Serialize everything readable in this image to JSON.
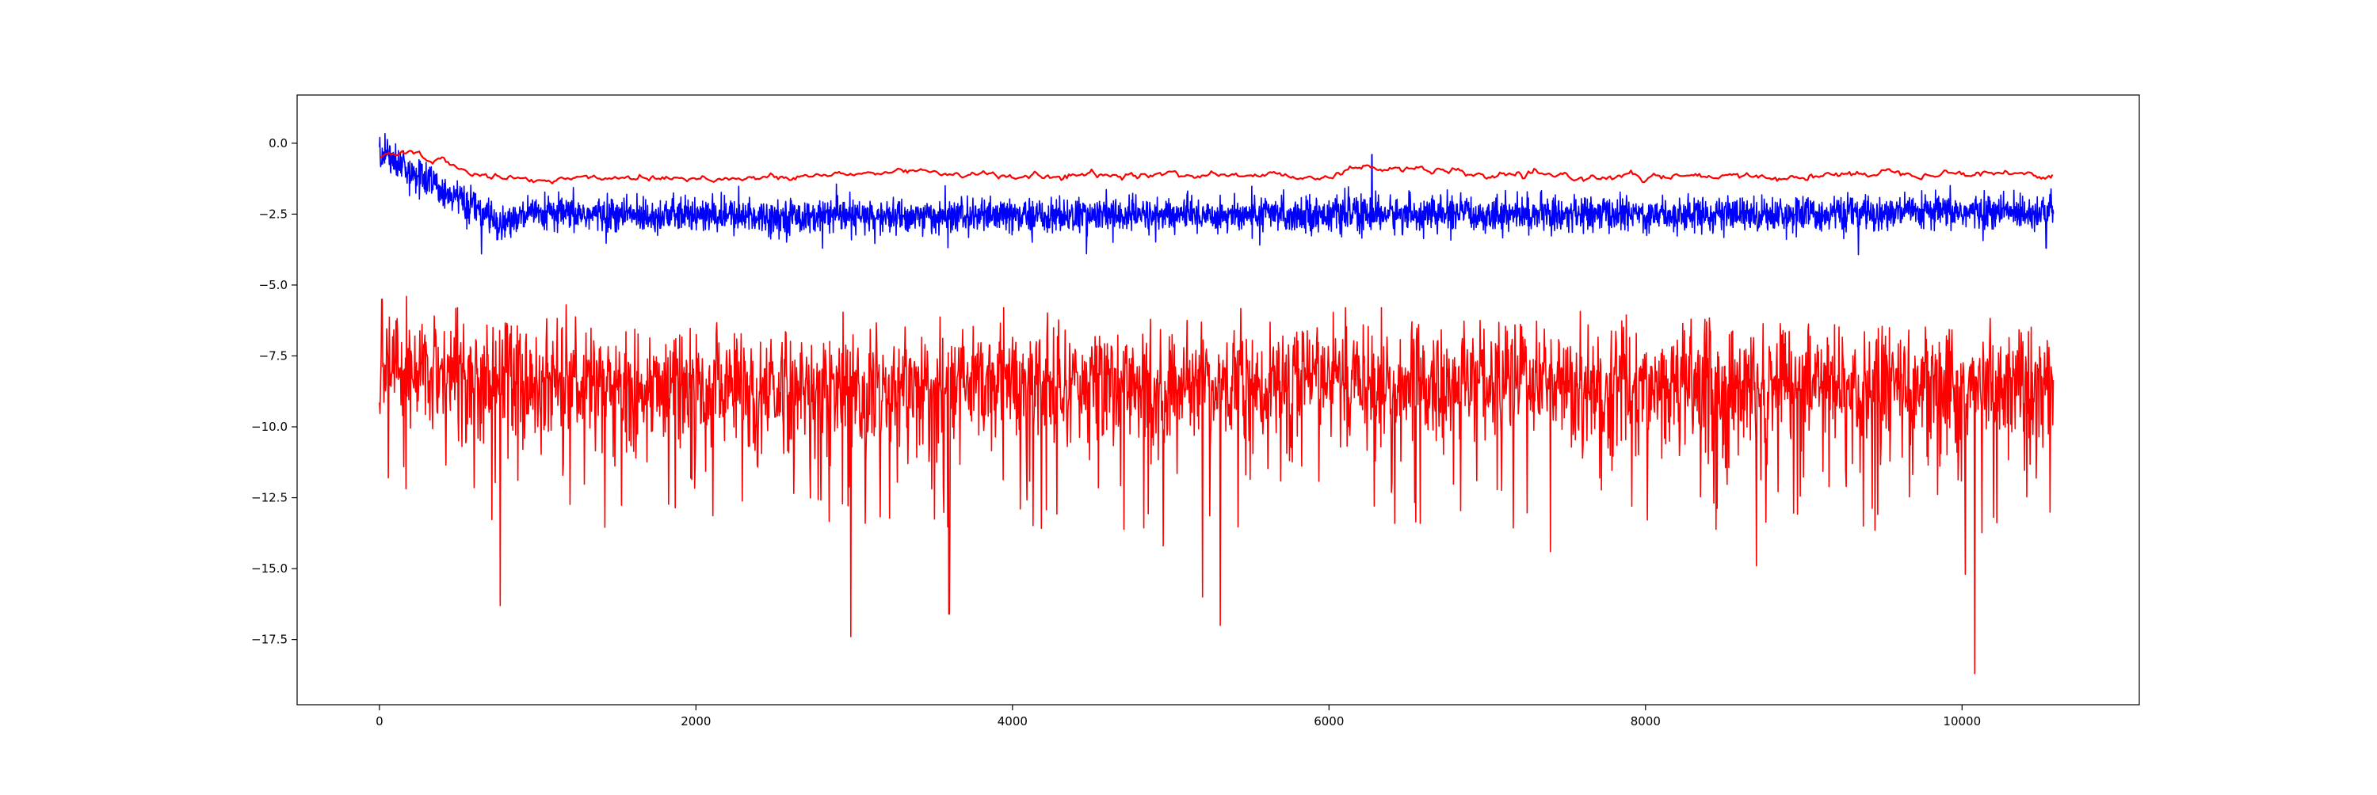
{
  "chart_data": {
    "type": "line",
    "title": "",
    "xlabel": "",
    "ylabel": "",
    "xlim": [
      -520,
      11120
    ],
    "ylim": [
      -19.8,
      1.7
    ],
    "x_ticks": [
      0,
      2000,
      4000,
      6000,
      8000,
      10000
    ],
    "x_tick_labels": [
      "0",
      "2000",
      "4000",
      "6000",
      "8000",
      "10000"
    ],
    "y_ticks": [
      0.0,
      -2.5,
      -5.0,
      -7.5,
      -10.0,
      -12.5,
      -15.0,
      -17.5
    ],
    "y_tick_labels": [
      "0.0",
      "−2.5",
      "−5.0",
      "−7.5",
      "−10.0",
      "−12.5",
      "−15.0",
      "−17.5"
    ],
    "grid": false,
    "legend": "none",
    "series": [
      {
        "color": "#ff0000",
        "role": "bottom noisy band",
        "x_range": [
          0,
          10580
        ],
        "approx_shape": [
          [
            0,
            -8.0
          ],
          [
            200,
            -8.1
          ],
          [
            1000,
            -8.4
          ],
          [
            3000,
            -8.5
          ],
          [
            6000,
            -8.5
          ],
          [
            9000,
            -8.5
          ],
          [
            10580,
            -8.6
          ]
        ],
        "band_upper": -6.4,
        "band_lower": -11.3,
        "spikes": [
          {
            "x": 765,
            "y": -16.3
          },
          {
            "x": 2980,
            "y": -17.4
          },
          {
            "x": 3600,
            "y": -16.6
          },
          {
            "x": 5310,
            "y": -17.0
          },
          {
            "x": 5200,
            "y": -16.0
          },
          {
            "x": 7400,
            "y": -14.4
          },
          {
            "x": 10080,
            "y": -18.7
          },
          {
            "x": 10020,
            "y": -15.2
          },
          {
            "x": 8700,
            "y": -14.9
          },
          {
            "x": 4950,
            "y": -14.2
          },
          {
            "x": 15,
            "y": -5.5
          },
          {
            "x": 170,
            "y": -5.4
          },
          {
            "x": 1180,
            "y": -5.7
          }
        ]
      },
      {
        "color": "#0000ff",
        "role": "middle noisy band",
        "x_range": [
          0,
          10580
        ],
        "approx_shape": [
          [
            0,
            -0.2
          ],
          [
            200,
            -1.0
          ],
          [
            450,
            -1.8
          ],
          [
            750,
            -2.8
          ],
          [
            1000,
            -2.5
          ],
          [
            3000,
            -2.6
          ],
          [
            6000,
            -2.5
          ],
          [
            9000,
            -2.5
          ],
          [
            10580,
            -2.4
          ]
        ],
        "band_half_width": 0.55,
        "spikes": [
          {
            "x": 6270,
            "y": -0.4
          },
          {
            "x": 2800,
            "y": -3.7
          },
          {
            "x": 10530,
            "y": -3.7
          }
        ]
      },
      {
        "color": "#ff0000",
        "role": "smoothed top line",
        "x_range": [
          0,
          10580
        ],
        "approx_shape": [
          [
            0,
            -0.5
          ],
          [
            100,
            -0.35
          ],
          [
            250,
            -0.35
          ],
          [
            450,
            -0.8
          ],
          [
            700,
            -1.2
          ],
          [
            1000,
            -1.3
          ],
          [
            1400,
            -1.2
          ],
          [
            1800,
            -1.2
          ],
          [
            2500,
            -1.25
          ],
          [
            3400,
            -0.95
          ],
          [
            4000,
            -1.2
          ],
          [
            5000,
            -1.1
          ],
          [
            6000,
            -1.15
          ],
          [
            6270,
            -0.8
          ],
          [
            7000,
            -1.15
          ],
          [
            8000,
            -1.2
          ],
          [
            9000,
            -1.2
          ],
          [
            9500,
            -1.0
          ],
          [
            10580,
            -1.1
          ]
        ],
        "wiggle": 0.08
      }
    ]
  }
}
